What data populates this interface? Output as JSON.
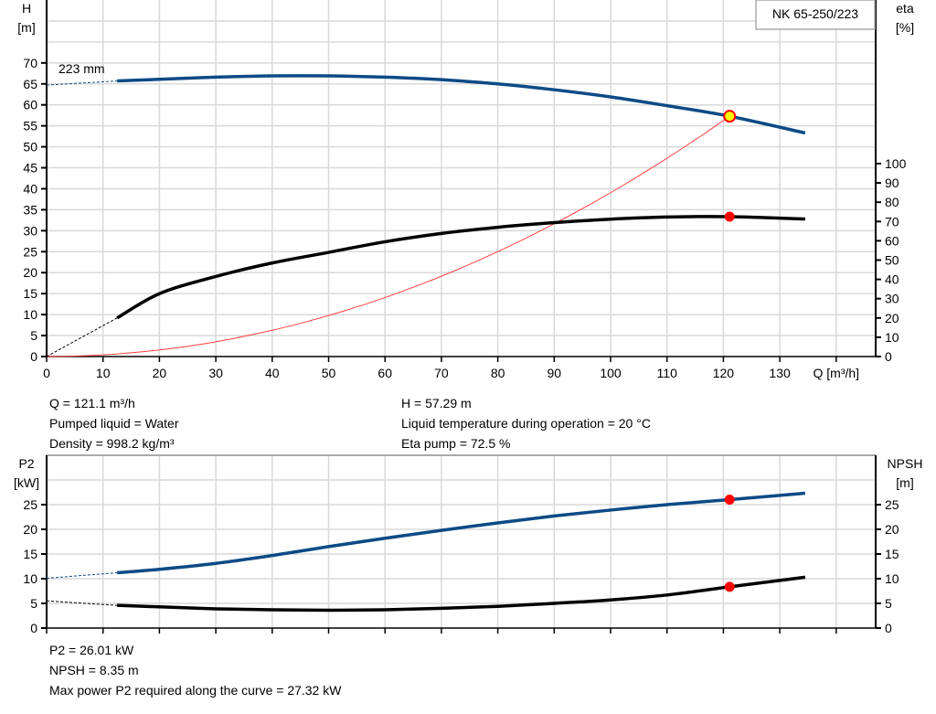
{
  "chart_data": [
    {
      "type": "line",
      "title": "NK 65-250/223",
      "impeller_label": "223 mm",
      "xlabel": "Q [m³/h]",
      "xlim": [
        0,
        147
      ],
      "xticks": [
        0,
        10,
        20,
        30,
        40,
        50,
        60,
        70,
        80,
        90,
        100,
        110,
        120,
        130
      ],
      "ylabel_left": [
        "H",
        "[m]"
      ],
      "ylim_left": [
        0,
        85
      ],
      "yticks_left": [
        0,
        5,
        10,
        15,
        20,
        25,
        30,
        35,
        40,
        45,
        50,
        55,
        60,
        65,
        70
      ],
      "ylabel_right": [
        "eta",
        "[%]"
      ],
      "ylim_right": [
        0,
        184.8
      ],
      "yticks_right": [
        0,
        10,
        20,
        30,
        40,
        50,
        60,
        70,
        80,
        90,
        100
      ],
      "grid": true,
      "series": [
        {
          "name": "H",
          "axis": "left",
          "color": "#0d4a86",
          "extrapolated": [
            [
              0,
              64.7
            ],
            [
              12.5,
              65.7
            ]
          ],
          "values": [
            [
              12.5,
              65.7
            ],
            [
              20,
              66.1
            ],
            [
              30,
              66.6
            ],
            [
              40,
              66.9
            ],
            [
              50,
              66.9
            ],
            [
              60,
              66.6
            ],
            [
              70,
              66.0
            ],
            [
              80,
              65.0
            ],
            [
              90,
              63.6
            ],
            [
              100,
              61.9
            ],
            [
              110,
              59.8
            ],
            [
              121.1,
              57.29
            ],
            [
              134.5,
              53.3
            ]
          ]
        },
        {
          "name": "eta",
          "axis": "right",
          "color": "#000000",
          "extrapolated": [
            [
              0,
              0
            ],
            [
              12.5,
              20
            ]
          ],
          "values": [
            [
              12.5,
              20
            ],
            [
              20,
              32.6
            ],
            [
              30,
              41.5
            ],
            [
              40,
              48.5
            ],
            [
              50,
              54
            ],
            [
              60,
              59.5
            ],
            [
              70,
              63.8
            ],
            [
              80,
              67
            ],
            [
              90,
              69.4
            ],
            [
              100,
              71.2
            ],
            [
              110,
              72.3
            ],
            [
              121.1,
              72.5
            ],
            [
              134.5,
              71.3
            ]
          ]
        },
        {
          "name": "system",
          "axis": "left",
          "color": "#ff4040",
          "formula_point": [
            121.1,
            57.29
          ]
        }
      ],
      "duty_point": {
        "Q": 121.1,
        "H": 57.29,
        "eta": 72.5
      }
    },
    {
      "type": "line",
      "xlim": [
        0,
        147
      ],
      "ylabel_left": [
        "P2",
        "[kW]"
      ],
      "ylim_left": [
        0,
        35
      ],
      "yticks_left": [
        0,
        5,
        10,
        15,
        20,
        25
      ],
      "ylabel_right": [
        "NPSH",
        "[m]"
      ],
      "ylim_right": [
        0,
        35
      ],
      "yticks_right": [
        0,
        5,
        10,
        15,
        20,
        25
      ],
      "grid": true,
      "series": [
        {
          "name": "P2",
          "color": "#0d4a86",
          "extrapolated": [
            [
              0,
              10.1
            ],
            [
              12.5,
              11.2
            ]
          ],
          "values": [
            [
              12.5,
              11.2
            ],
            [
              20,
              11.9
            ],
            [
              30,
              13.1
            ],
            [
              40,
              14.7
            ],
            [
              50,
              16.5
            ],
            [
              60,
              18.2
            ],
            [
              70,
              19.8
            ],
            [
              80,
              21.3
            ],
            [
              90,
              22.7
            ],
            [
              100,
              23.9
            ],
            [
              110,
              25.0
            ],
            [
              121.1,
              26.01
            ],
            [
              134.5,
              27.32
            ]
          ]
        },
        {
          "name": "NPSH",
          "color": "#000000",
          "extrapolated": [
            [
              0,
              5.5
            ],
            [
              12.5,
              4.6
            ]
          ],
          "values": [
            [
              12.5,
              4.6
            ],
            [
              20,
              4.3
            ],
            [
              30,
              3.9
            ],
            [
              40,
              3.7
            ],
            [
              50,
              3.6
            ],
            [
              60,
              3.7
            ],
            [
              70,
              4.0
            ],
            [
              80,
              4.4
            ],
            [
              90,
              5.0
            ],
            [
              100,
              5.7
            ],
            [
              110,
              6.7
            ],
            [
              121.1,
              8.35
            ],
            [
              134.5,
              10.3
            ]
          ]
        }
      ],
      "duty_point": {
        "Q": 121.1,
        "P2": 26.01,
        "NPSH": 8.35
      }
    }
  ],
  "info_top": {
    "col1": [
      "Q = 121.1 m³/h",
      "Pumped liquid = Water",
      "Density = 998.2 kg/m³"
    ],
    "col2": [
      "H = 57.29 m",
      "Liquid temperature during operation = 20 °C",
      "Eta pump = 72.5 %"
    ]
  },
  "info_bottom": [
    "P2 = 26.01 kW",
    "NPSH = 8.35 m",
    "Max power P2 required along the curve = 27.32 kW"
  ],
  "colors": {
    "blue": "#0d4a86",
    "grid": "#d9d9d9",
    "point": "#ff0000",
    "duty_fill": "#ffff00"
  }
}
